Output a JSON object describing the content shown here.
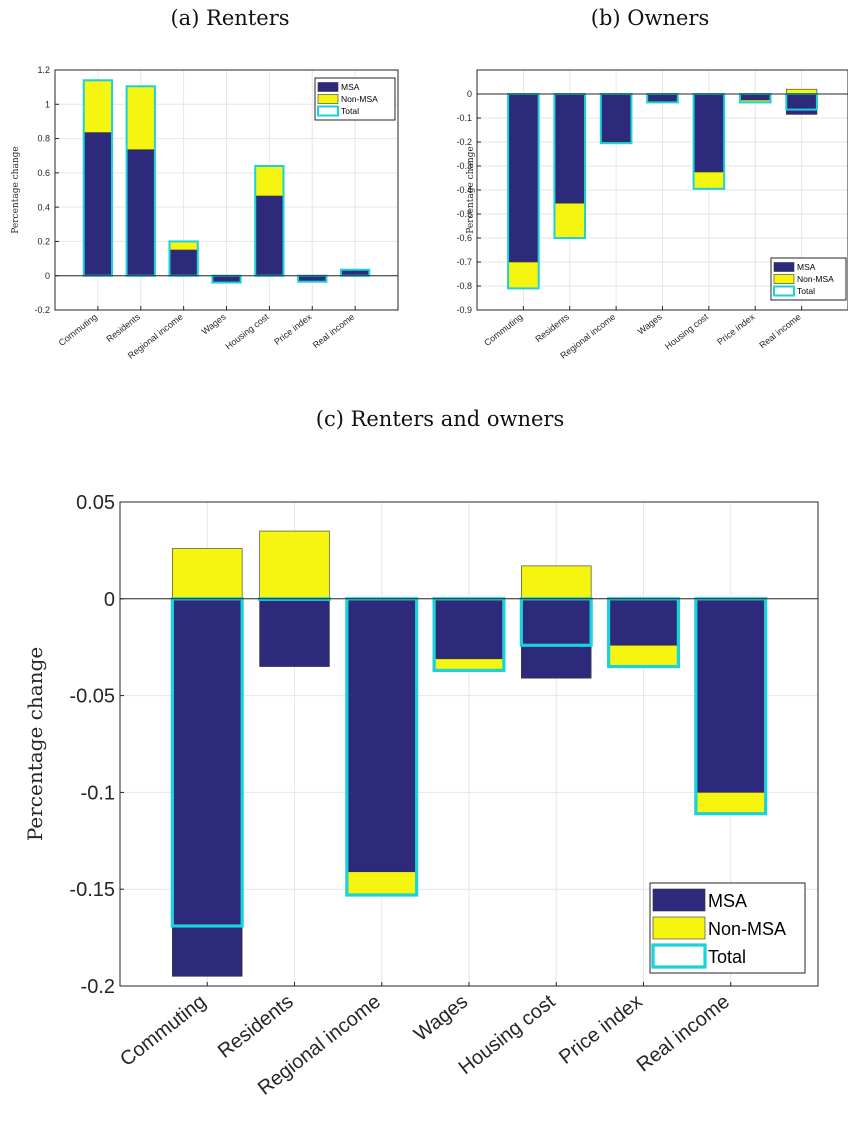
{
  "figure": {
    "panel_titles": [
      "(a) Renters",
      "(b) Owners",
      "(c) Renters and owners"
    ]
  },
  "colors": {
    "msa": "#2d2a7c",
    "non_msa": "#f5f50f",
    "total": "#19d2dc"
  },
  "chart_data": [
    {
      "type": "bar",
      "title": "(a) Renters",
      "ylabel": "Percentage change",
      "categories": [
        "Commuting",
        "Residents",
        "Regional income",
        "Wages",
        "Housing cost",
        "Price index",
        "Real income"
      ],
      "ylim": [
        -0.2,
        1.2
      ],
      "yticks": [
        -0.2,
        0,
        0.2,
        0.4,
        0.6,
        0.8,
        1,
        1.2
      ],
      "ytick_labels": [
        "-0.2",
        "0",
        "0.2",
        "0.4",
        "0.6",
        "0.8",
        "1",
        "1.2"
      ],
      "legend_position": "top-right",
      "series": [
        {
          "name": "MSA",
          "values": [
            0.835,
            0.735,
            0.15,
            -0.035,
            0.465,
            -0.03,
            0.03
          ]
        },
        {
          "name": "Non-MSA",
          "values": [
            0.305,
            0.37,
            0.05,
            -0.005,
            0.175,
            -0.005,
            0.005
          ]
        },
        {
          "name": "Total",
          "values": [
            1.14,
            1.105,
            0.2,
            -0.04,
            0.64,
            -0.035,
            0.035
          ]
        }
      ]
    },
    {
      "type": "bar",
      "title": "(b) Owners",
      "ylabel": "Percentage change",
      "categories": [
        "Commuting",
        "Residents",
        "Regional income",
        "Wages",
        "Housing cost",
        "Price index",
        "Real income"
      ],
      "ylim": [
        -0.9,
        0.1
      ],
      "yticks": [
        -0.9,
        -0.8,
        -0.7,
        -0.6,
        -0.5,
        -0.4,
        -0.3,
        -0.2,
        -0.1,
        0
      ],
      "ytick_labels": [
        "-0.9",
        "-0.8",
        "-0.7",
        "-0.6",
        "-0.5",
        "-0.4",
        "-0.3",
        "-0.2",
        "-0.1",
        "0"
      ],
      "legend_position": "bottom-right",
      "series": [
        {
          "name": "MSA",
          "values": [
            -0.7,
            -0.455,
            -0.2,
            -0.03,
            -0.325,
            -0.025,
            -0.085
          ]
        },
        {
          "name": "Non-MSA",
          "values": [
            -0.11,
            -0.145,
            -0.005,
            -0.005,
            -0.07,
            -0.01,
            0.02
          ]
        },
        {
          "name": "Total",
          "values": [
            -0.81,
            -0.6,
            -0.205,
            -0.035,
            -0.395,
            -0.035,
            -0.065
          ]
        }
      ]
    },
    {
      "type": "bar",
      "title": "(c) Renters and owners",
      "ylabel": "Percentage change",
      "categories": [
        "Commuting",
        "Residents",
        "Regional income",
        "Wages",
        "Housing cost",
        "Price index",
        "Real income"
      ],
      "ylim": [
        -0.2,
        0.05
      ],
      "yticks": [
        -0.2,
        -0.15,
        -0.1,
        -0.05,
        0,
        0.05
      ],
      "ytick_labels": [
        "-0.2",
        "-0.15",
        "-0.1",
        "-0.05",
        "0",
        "0.05"
      ],
      "legend_position": "bottom-right",
      "series": [
        {
          "name": "MSA",
          "values": [
            -0.195,
            -0.035,
            -0.141,
            -0.031,
            -0.041,
            -0.024,
            -0.1
          ]
        },
        {
          "name": "Non-MSA",
          "values": [
            0.026,
            0.035,
            -0.012,
            -0.006,
            0.017,
            -0.011,
            -0.011
          ]
        },
        {
          "name": "Total",
          "values": [
            -0.169,
            0,
            -0.153,
            -0.037,
            -0.024,
            -0.035,
            -0.111
          ]
        }
      ]
    }
  ]
}
